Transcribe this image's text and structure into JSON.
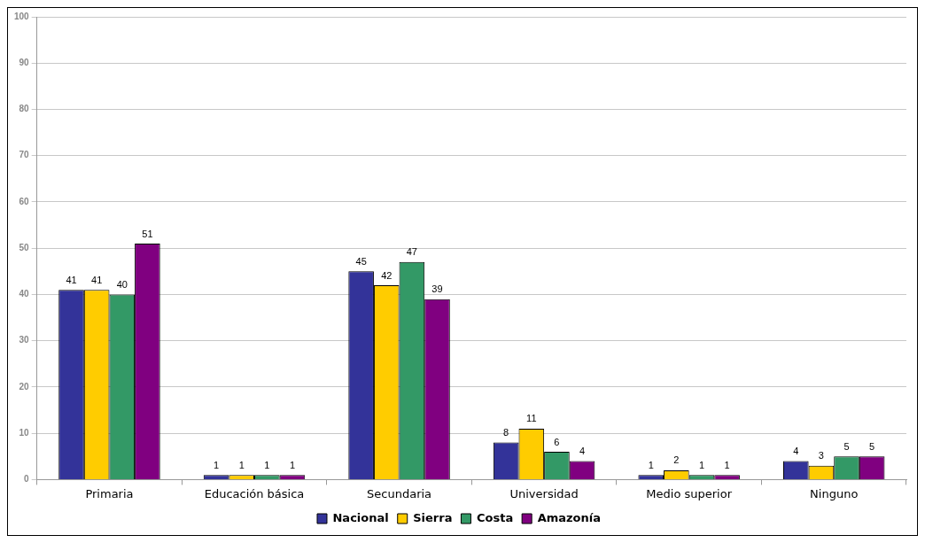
{
  "chart_data": {
    "type": "bar",
    "categories": [
      "Primaria",
      "Educación básica",
      "Secundaria",
      "Universidad",
      "Medio superior",
      "Ninguno"
    ],
    "series": [
      {
        "name": "Nacional",
        "color": "#333399",
        "values": [
          41,
          1,
          45,
          8,
          1,
          4
        ]
      },
      {
        "name": "Sierra",
        "color": "#ffcc00",
        "values": [
          41,
          1,
          42,
          11,
          2,
          3
        ]
      },
      {
        "name": "Costa",
        "color": "#339966",
        "values": [
          40,
          1,
          47,
          6,
          1,
          5
        ]
      },
      {
        "name": "Amazonía",
        "color": "#800080",
        "values": [
          51,
          1,
          39,
          4,
          1,
          5
        ]
      }
    ],
    "ylim": [
      0,
      100
    ],
    "yticks": [
      0,
      10,
      20,
      30,
      40,
      50,
      60,
      70,
      80,
      90,
      100
    ],
    "grid": "y",
    "legend": "bottom",
    "data_labels": true
  }
}
